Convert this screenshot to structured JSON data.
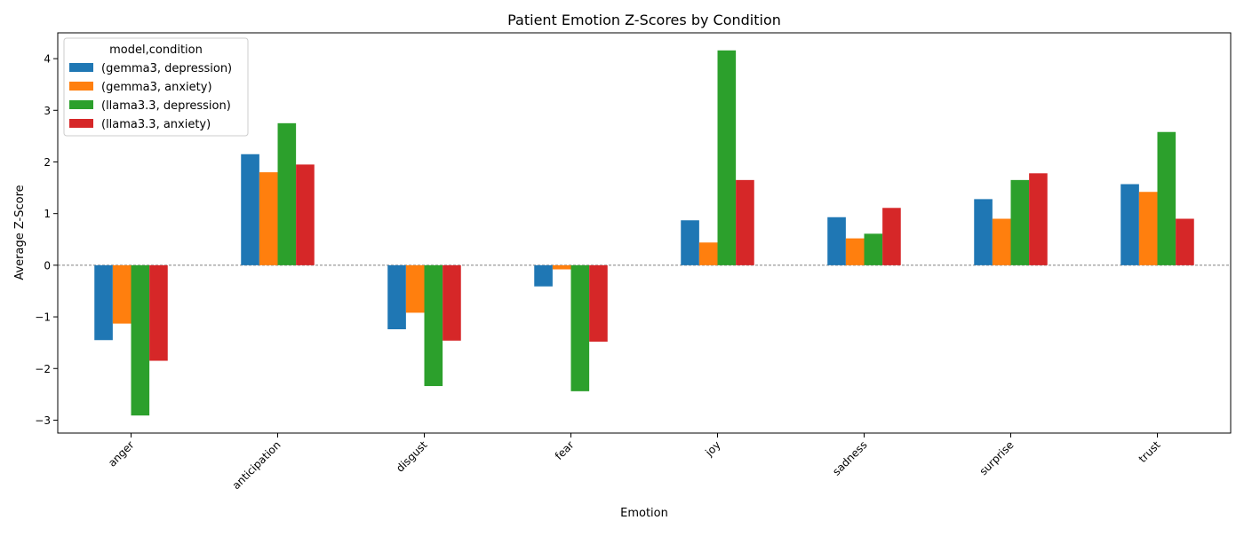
{
  "chart_data": {
    "type": "bar",
    "title": "Patient Emotion Z-Scores by Condition",
    "xlabel": "Emotion",
    "ylabel": "Average Z-Score",
    "ylim": [
      -3.25,
      4.5
    ],
    "yticks": [
      -3,
      -2,
      -1,
      0,
      1,
      2,
      3,
      4
    ],
    "ytick_labels": [
      "−3",
      "−2",
      "−1",
      "0",
      "1",
      "2",
      "3",
      "4"
    ],
    "categories": [
      "anger",
      "anticipation",
      "disgust",
      "fear",
      "joy",
      "sadness",
      "surprise",
      "trust"
    ],
    "legend_title": "model,condition",
    "legend_position": "top-left",
    "zero_line": true,
    "series": [
      {
        "name": "(gemma3, depression)",
        "color": "#1f77b4",
        "values": [
          -1.45,
          2.15,
          -1.24,
          -0.41,
          0.87,
          0.93,
          1.28,
          1.57
        ]
      },
      {
        "name": "(gemma3, anxiety)",
        "color": "#ff7f0e",
        "values": [
          -1.13,
          1.8,
          -0.92,
          -0.08,
          0.44,
          0.52,
          0.9,
          1.42
        ]
      },
      {
        "name": "(llama3.3, depression)",
        "color": "#2ca02c",
        "values": [
          -2.91,
          2.75,
          -2.34,
          -2.44,
          4.16,
          0.61,
          1.65,
          2.58
        ]
      },
      {
        "name": "(llama3.3, anxiety)",
        "color": "#d62728",
        "values": [
          -1.85,
          1.95,
          -1.46,
          -1.48,
          1.65,
          1.11,
          1.78,
          0.9
        ]
      }
    ]
  }
}
